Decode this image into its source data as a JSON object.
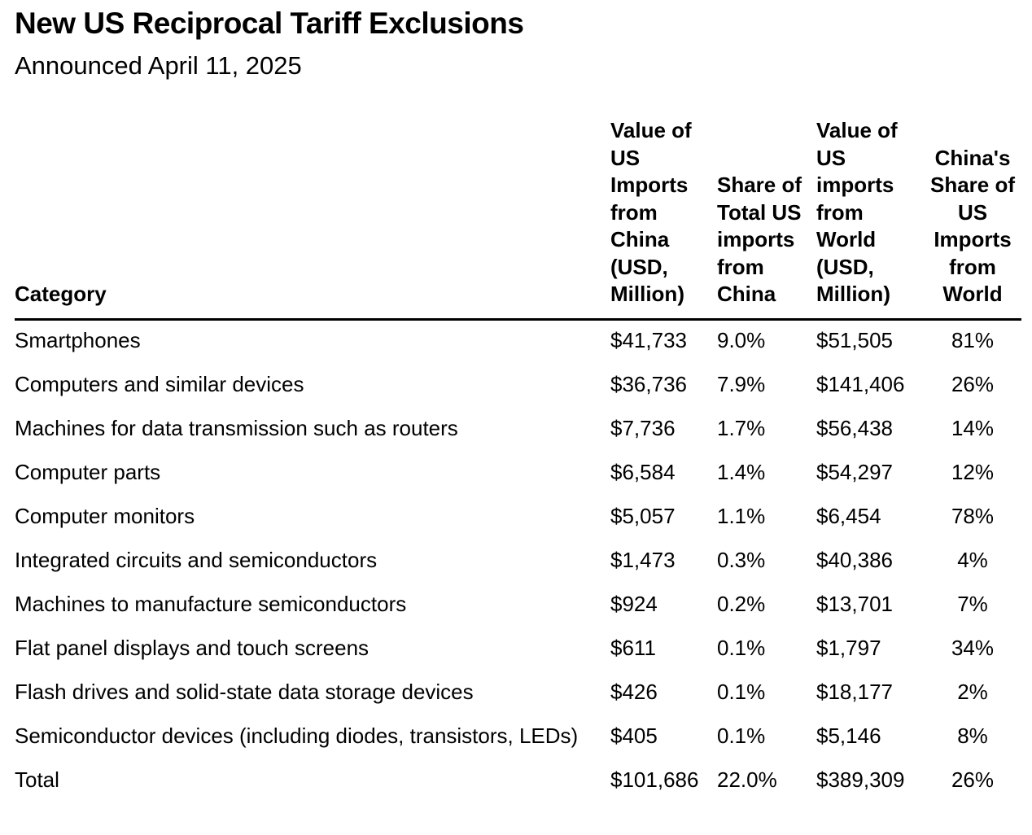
{
  "title": "New US Reciprocal Tariff Exclusions",
  "subtitle": "Announced April 11, 2025",
  "chart_data": {
    "type": "table",
    "columns": [
      "Category",
      "Value of US Imports from China (USD, Million)",
      "Share of Total US imports from China",
      "Value of US imports from World (USD, Million)",
      "China's Share of US Imports from World"
    ],
    "rows": [
      [
        "Smartphones",
        "$41,733",
        "9.0%",
        "$51,505",
        "81%"
      ],
      [
        "Computers and similar devices",
        "$36,736",
        "7.9%",
        "$141,406",
        "26%"
      ],
      [
        "Machines for data transmission such as routers",
        "$7,736",
        "1.7%",
        "$56,438",
        "14%"
      ],
      [
        "Computer parts",
        "$6,584",
        "1.4%",
        "$54,297",
        "12%"
      ],
      [
        "Computer monitors",
        "$5,057",
        "1.1%",
        "$6,454",
        "78%"
      ],
      [
        "Integrated circuits and semiconductors",
        "$1,473",
        "0.3%",
        "$40,386",
        "4%"
      ],
      [
        "Machines to manufacture semiconductors",
        "$924",
        "0.2%",
        "$13,701",
        "7%"
      ],
      [
        "Flat panel displays and touch screens",
        "$611",
        "0.1%",
        "$1,797",
        "34%"
      ],
      [
        "Flash drives and solid-state data storage devices",
        "$426",
        "0.1%",
        "$18,177",
        "2%"
      ],
      [
        "Semiconductor devices (including diodes, transistors, LEDs)",
        "$405",
        "0.1%",
        "$5,146",
        "8%"
      ],
      [
        "Total",
        "$101,686",
        "22.0%",
        "$389,309",
        "26%"
      ]
    ]
  }
}
